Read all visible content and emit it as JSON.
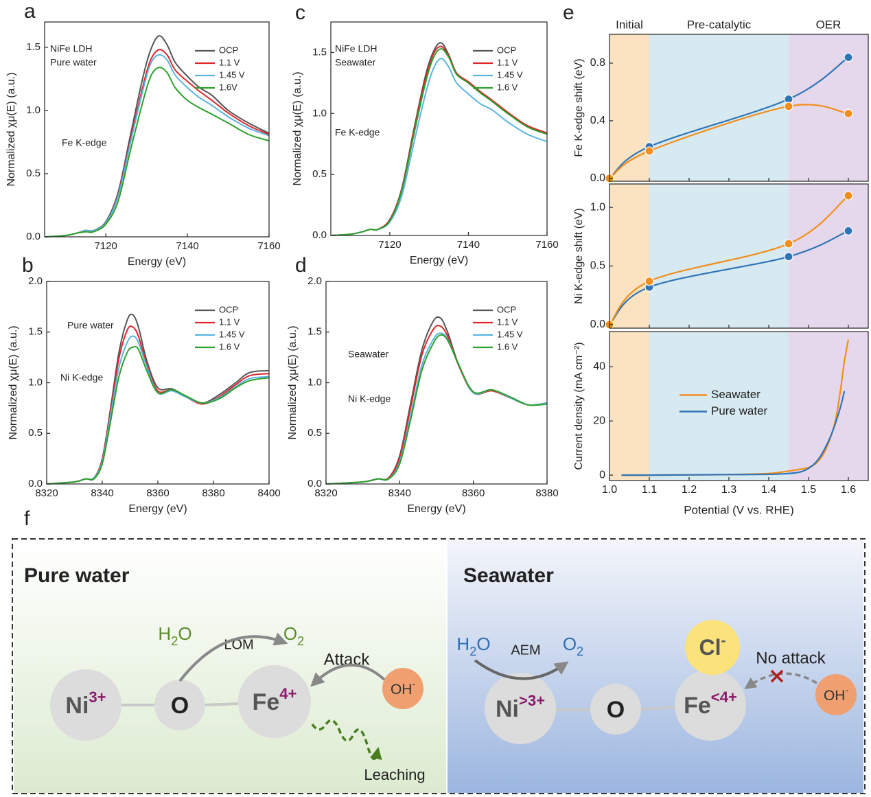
{
  "chart_data": [
    {
      "type": "line",
      "panel_label": "a",
      "xlabel": "Energy (eV)",
      "ylabel": "Normalized χμ(E) (a.u.)",
      "annotations": [
        "NiFe LDH",
        "Pure water",
        "Fe K-edge"
      ],
      "xlim": [
        7105,
        7160
      ],
      "xticks": [
        7120,
        7140,
        7160
      ],
      "ylim": [
        0,
        1.7
      ],
      "yticks": [
        {
          "value": 0,
          "label": "0.0"
        },
        0.5,
        {
          "value": 1,
          "label": "1.0"
        },
        1.5
      ],
      "legend": "upper right",
      "x": [
        7105,
        7110,
        7113,
        7115,
        7117,
        7120,
        7123,
        7126,
        7129,
        7131,
        7133,
        7135,
        7137,
        7140,
        7143,
        7146,
        7150,
        7155,
        7160
      ],
      "series": [
        {
          "name": "OCP",
          "color": "#555555",
          "values": [
            0,
            0.01,
            0.03,
            0.05,
            0.05,
            0.12,
            0.35,
            0.8,
            1.25,
            1.48,
            1.59,
            1.52,
            1.38,
            1.27,
            1.18,
            1.12,
            1.0,
            0.9,
            0.82
          ]
        },
        {
          "name": "1.1 V",
          "color": "#e0262b",
          "values": [
            0,
            0.01,
            0.03,
            0.05,
            0.05,
            0.11,
            0.33,
            0.76,
            1.18,
            1.4,
            1.48,
            1.44,
            1.32,
            1.23,
            1.15,
            1.08,
            0.98,
            0.88,
            0.81
          ]
        },
        {
          "name": "1.45 V",
          "color": "#5ab4e0",
          "values": [
            0,
            0.01,
            0.03,
            0.05,
            0.05,
            0.11,
            0.32,
            0.74,
            1.15,
            1.37,
            1.44,
            1.4,
            1.28,
            1.18,
            1.1,
            1.04,
            0.95,
            0.86,
            0.8
          ]
        },
        {
          "name": "1.6V",
          "color": "#2ca02c",
          "values": [
            0,
            0.01,
            0.03,
            0.04,
            0.04,
            0.1,
            0.28,
            0.68,
            1.06,
            1.27,
            1.34,
            1.3,
            1.18,
            1.08,
            1.02,
            0.97,
            0.9,
            0.81,
            0.76
          ]
        }
      ]
    },
    {
      "type": "line",
      "panel_label": "b",
      "xlabel": "Energy (eV)",
      "ylabel": "Normalized χμ(E) (a.u.)",
      "annotations": [
        "Pure water",
        "Ni K-edge"
      ],
      "xlim": [
        8320,
        8400
      ],
      "xticks": [
        8320,
        8340,
        8360,
        8380,
        8400
      ],
      "ylim": [
        0,
        2.0
      ],
      "yticks": [
        {
          "value": 0,
          "label": "0.0"
        },
        0.5,
        {
          "value": 1,
          "label": "1.0"
        },
        1.5,
        {
          "value": 2,
          "label": "2.0"
        }
      ],
      "legend": "upper right",
      "x": [
        8320,
        8330,
        8334,
        8337,
        8340,
        8343,
        8346,
        8349,
        8351,
        8353,
        8356,
        8360,
        8365,
        8370,
        8376,
        8382,
        8388,
        8393,
        8400
      ],
      "series": [
        {
          "name": "OCP",
          "color": "#555555",
          "values": [
            0,
            0.02,
            0.05,
            0.06,
            0.25,
            0.75,
            1.3,
            1.62,
            1.67,
            1.55,
            1.22,
            0.95,
            0.94,
            0.87,
            0.8,
            0.88,
            1.0,
            1.1,
            1.12
          ]
        },
        {
          "name": "1.1 V",
          "color": "#e0262b",
          "values": [
            0,
            0.02,
            0.05,
            0.06,
            0.24,
            0.72,
            1.24,
            1.52,
            1.55,
            1.46,
            1.18,
            0.92,
            0.93,
            0.86,
            0.79,
            0.86,
            0.98,
            1.07,
            1.09
          ]
        },
        {
          "name": "1.45 V",
          "color": "#5ab4e0",
          "values": [
            0,
            0.02,
            0.05,
            0.06,
            0.22,
            0.68,
            1.15,
            1.4,
            1.46,
            1.4,
            1.16,
            0.9,
            0.92,
            0.86,
            0.8,
            0.85,
            0.96,
            1.04,
            1.06
          ]
        },
        {
          "name": "1.6 V",
          "color": "#2ca02c",
          "values": [
            0,
            0.02,
            0.05,
            0.05,
            0.2,
            0.62,
            1.06,
            1.3,
            1.35,
            1.33,
            1.12,
            0.9,
            0.93,
            0.87,
            0.8,
            0.84,
            0.95,
            1.02,
            1.05
          ]
        }
      ]
    },
    {
      "type": "line",
      "panel_label": "c",
      "xlabel": "Energy (eV)",
      "ylabel": "Normalized χμ(E) (a.u.)",
      "annotations": [
        "NiFe LDH",
        "Seawater",
        "Fe K-edge"
      ],
      "xlim": [
        7105,
        7160
      ],
      "xticks": [
        7120,
        7140,
        7160
      ],
      "ylim": [
        0,
        1.75
      ],
      "yticks": [
        {
          "value": 0,
          "label": "0.0"
        },
        0.5,
        {
          "value": 1,
          "label": "1.0"
        },
        1.5
      ],
      "legend": "upper right",
      "x": [
        7105,
        7110,
        7113,
        7115,
        7117,
        7120,
        7123,
        7126,
        7129,
        7131,
        7133,
        7135,
        7137,
        7140,
        7143,
        7146,
        7150,
        7155,
        7160
      ],
      "series": [
        {
          "name": "OCP",
          "color": "#555555",
          "values": [
            0,
            0.01,
            0.03,
            0.05,
            0.05,
            0.13,
            0.38,
            0.85,
            1.3,
            1.5,
            1.58,
            1.48,
            1.33,
            1.25,
            1.17,
            1.1,
            1.0,
            0.9,
            0.84
          ]
        },
        {
          "name": "1.1 V",
          "color": "#e0262b",
          "values": [
            0,
            0.01,
            0.03,
            0.05,
            0.05,
            0.13,
            0.37,
            0.83,
            1.27,
            1.48,
            1.55,
            1.47,
            1.33,
            1.26,
            1.18,
            1.11,
            1.01,
            0.9,
            0.84
          ]
        },
        {
          "name": "1.45 V",
          "color": "#5ab4e0",
          "values": [
            0,
            0.01,
            0.03,
            0.05,
            0.05,
            0.11,
            0.32,
            0.74,
            1.15,
            1.36,
            1.45,
            1.38,
            1.25,
            1.16,
            1.08,
            1.03,
            0.93,
            0.83,
            0.77
          ]
        },
        {
          "name": "1.6 V",
          "color": "#2ca02c",
          "values": [
            0,
            0.01,
            0.03,
            0.05,
            0.05,
            0.12,
            0.36,
            0.81,
            1.24,
            1.45,
            1.53,
            1.46,
            1.32,
            1.25,
            1.17,
            1.1,
            1.0,
            0.89,
            0.83
          ]
        }
      ]
    },
    {
      "type": "line",
      "panel_label": "d",
      "xlabel": "Energy (eV)",
      "ylabel": "Normalized χμ(E) (a.u.)",
      "annotations": [
        "Seawater",
        "Ni K-edge"
      ],
      "xlim": [
        8320,
        8380
      ],
      "xticks": [
        8320,
        8340,
        8360,
        8380
      ],
      "ylim": [
        0,
        2.0
      ],
      "yticks": [
        {
          "value": 0,
          "label": "0.0"
        },
        0.5,
        {
          "value": 1,
          "label": "1.0"
        },
        1.5,
        {
          "value": 2,
          "label": "2.0"
        }
      ],
      "legend": "upper right",
      "x": [
        8320,
        8330,
        8334,
        8337,
        8340,
        8343,
        8346,
        8349,
        8351,
        8353,
        8356,
        8360,
        8365,
        8370,
        8375,
        8380
      ],
      "series": [
        {
          "name": "OCP",
          "color": "#555555",
          "values": [
            0,
            0.02,
            0.05,
            0.06,
            0.28,
            0.8,
            1.32,
            1.6,
            1.64,
            1.5,
            1.18,
            0.9,
            0.92,
            0.85,
            0.78,
            0.8
          ]
        },
        {
          "name": "1.1 V",
          "color": "#e0262b",
          "values": [
            0,
            0.02,
            0.05,
            0.06,
            0.26,
            0.76,
            1.27,
            1.52,
            1.56,
            1.46,
            1.17,
            0.9,
            0.92,
            0.85,
            0.78,
            0.8
          ]
        },
        {
          "name": "1.45 V",
          "color": "#5ab4e0",
          "values": [
            0,
            0.02,
            0.05,
            0.05,
            0.22,
            0.68,
            1.17,
            1.42,
            1.49,
            1.43,
            1.18,
            0.9,
            0.93,
            0.85,
            0.78,
            0.8
          ]
        },
        {
          "name": "1.6 V",
          "color": "#2ca02c",
          "values": [
            0,
            0.02,
            0.05,
            0.05,
            0.2,
            0.64,
            1.12,
            1.38,
            1.47,
            1.42,
            1.18,
            0.91,
            0.93,
            0.86,
            0.78,
            0.79
          ]
        }
      ]
    },
    {
      "type": "line",
      "panel_label": "e",
      "xlabel": "Potential (V vs. RHE)",
      "xlim": [
        1.0,
        1.65
      ],
      "xticks": [
        {
          "value": 1.0,
          "label": "1.0"
        },
        1.1,
        1.2,
        1.3,
        1.4,
        1.5,
        1.6
      ],
      "regions": [
        {
          "label": "Initial",
          "range": [
            1.0,
            1.1
          ],
          "color": "#fbe3c2"
        },
        {
          "label": "Pre-catalytic",
          "range": [
            1.1,
            1.45
          ],
          "color": "#d7e9f1"
        },
        {
          "label": "OER",
          "range": [
            1.45,
            1.65
          ],
          "color": "#e6d8ec"
        }
      ],
      "subplots": [
        {
          "ylabel": "Fe K-edge shift (eV)",
          "ylim": [
            -0.02,
            1.0
          ],
          "yticks": [
            {
              "value": 0,
              "label": "0.0"
            },
            0.4,
            0.8
          ],
          "markers": true,
          "x": [
            1.0,
            1.1,
            1.45,
            1.6
          ],
          "series": [
            {
              "color": "#2e75b6",
              "values": [
                0,
                0.22,
                0.55,
                0.84
              ]
            },
            {
              "color": "#f28e1c",
              "values": [
                0,
                0.19,
                0.5,
                0.45
              ]
            }
          ]
        },
        {
          "ylabel": "Ni K-edge shift (eV)",
          "ylim": [
            -0.03,
            1.2
          ],
          "yticks": [
            {
              "value": 0,
              "label": "0.0"
            },
            0.5,
            {
              "value": 1,
              "label": "1.0"
            }
          ],
          "markers": true,
          "x": [
            1.0,
            1.1,
            1.45,
            1.6
          ],
          "series": [
            {
              "color": "#2e75b6",
              "values": [
                0,
                0.32,
                0.58,
                0.8
              ]
            },
            {
              "color": "#f28e1c",
              "values": [
                0,
                0.37,
                0.69,
                1.1
              ]
            }
          ]
        },
        {
          "ylabel": "Current density (mA cm⁻²)",
          "ylim": [
            -2,
            53
          ],
          "yticks": [
            0,
            20,
            40
          ],
          "legend": "center left",
          "series": [
            {
              "name": "Seawater",
              "color": "#f28e1c",
              "x": [
                1.03,
                1.1,
                1.2,
                1.3,
                1.4,
                1.45,
                1.48,
                1.5,
                1.52,
                1.54,
                1.56,
                1.57,
                1.58,
                1.59,
                1.6
              ],
              "values": [
                0,
                0,
                0.1,
                0.2,
                0.6,
                1.5,
                2.2,
                2.8,
                4.5,
                8.5,
                16,
                22,
                31,
                42,
                50
              ]
            },
            {
              "name": "Pure water",
              "color": "#2e75b6",
              "x": [
                1.03,
                1.1,
                1.2,
                1.3,
                1.4,
                1.45,
                1.48,
                1.5,
                1.52,
                1.54,
                1.56,
                1.58,
                1.59
              ],
              "values": [
                0,
                0,
                0.1,
                0.2,
                0.3,
                0.6,
                1.2,
                2.5,
                5,
                9.5,
                16,
                25,
                31
              ]
            }
          ]
        }
      ]
    }
  ],
  "diagram": {
    "panel_label": "f",
    "pure_water": {
      "title": "Pure water",
      "reactant": {
        "base": "H",
        "sub": "2",
        "end": "O"
      },
      "mechanism": "LOM",
      "product": {
        "base": "O",
        "sub": "2"
      },
      "attack": "Attack",
      "hydroxide": {
        "base": "OH",
        "sup": "-"
      },
      "nickel": {
        "base": "Ni",
        "sup": "3+"
      },
      "oxygen": "O",
      "iron": {
        "base": "Fe",
        "sup": "4+"
      },
      "leaching": "Leaching"
    },
    "seawater": {
      "title": "Seawater",
      "reactant": {
        "base": "H",
        "sub": "2",
        "end": "O"
      },
      "mechanism": "AEM",
      "product": {
        "base": "O",
        "sub": "2"
      },
      "chloride": {
        "base": "Cl",
        "sup": "-"
      },
      "attack": "No attack",
      "hydroxide": {
        "base": "OH",
        "sup": "-"
      },
      "nickel": {
        "base": "Ni",
        "sup": ">3+"
      },
      "oxygen": "O",
      "iron": {
        "base": "Fe",
        "sup": "<4+"
      }
    }
  }
}
